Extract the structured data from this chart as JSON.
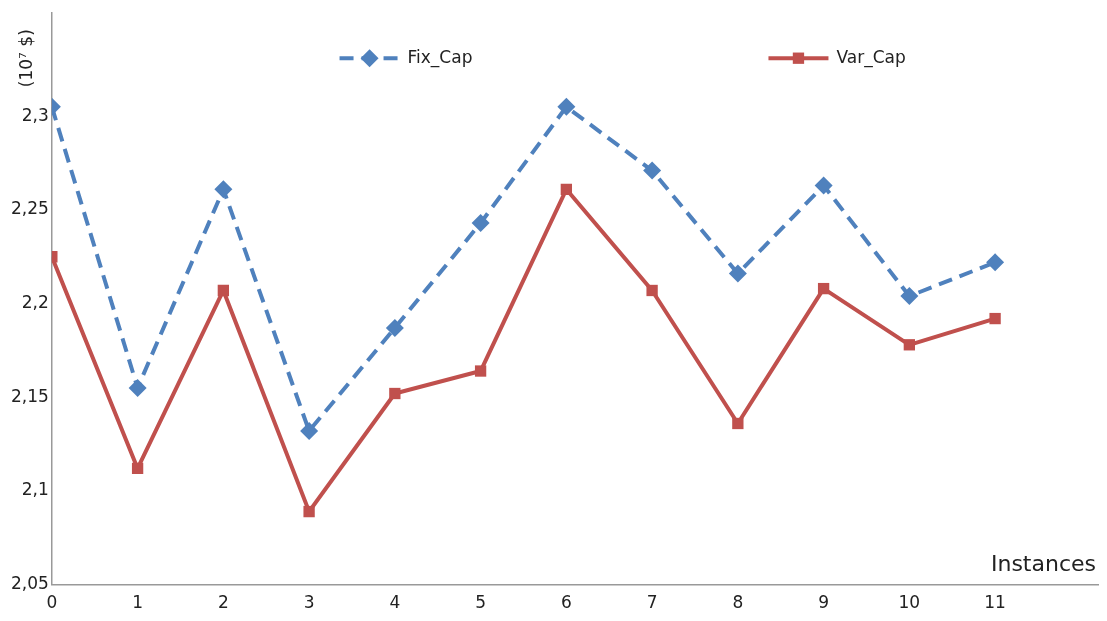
{
  "chart_data": {
    "type": "line",
    "xlabel": "Instances",
    "ylabel": "(10⁷ $)",
    "x": [
      0,
      1,
      2,
      3,
      4,
      5,
      6,
      7,
      8,
      9,
      10,
      11
    ],
    "xlim": [
      0,
      12.2
    ],
    "xticks": [
      0,
      1,
      2,
      3,
      4,
      5,
      6,
      7,
      8,
      9,
      10,
      11
    ],
    "ylim": [
      2.05,
      2.355
    ],
    "yticks": [
      {
        "value": 2.05,
        "label": "2,05"
      },
      {
        "value": 2.1,
        "label": "2,1"
      },
      {
        "value": 2.15,
        "label": "2,15"
      },
      {
        "value": 2.2,
        "label": "2,2"
      },
      {
        "value": 2.25,
        "label": "2,25"
      },
      {
        "value": 2.3,
        "label": "2,3"
      }
    ],
    "grid": false,
    "legend": "top",
    "series": [
      {
        "name": "Fix_Cap",
        "color": "#4f81bd",
        "marker": "diamond",
        "line_style": "dashed",
        "values": [
          2.305,
          2.155,
          2.261,
          2.132,
          2.187,
          2.243,
          2.305,
          2.271,
          2.216,
          2.263,
          2.204,
          2.222
        ]
      },
      {
        "name": "Var_Cap",
        "color": "#c0504d",
        "marker": "square",
        "line_style": "solid",
        "values": [
          2.225,
          2.112,
          2.207,
          2.089,
          2.152,
          2.164,
          2.261,
          2.207,
          2.136,
          2.208,
          2.178,
          2.192
        ]
      }
    ]
  }
}
